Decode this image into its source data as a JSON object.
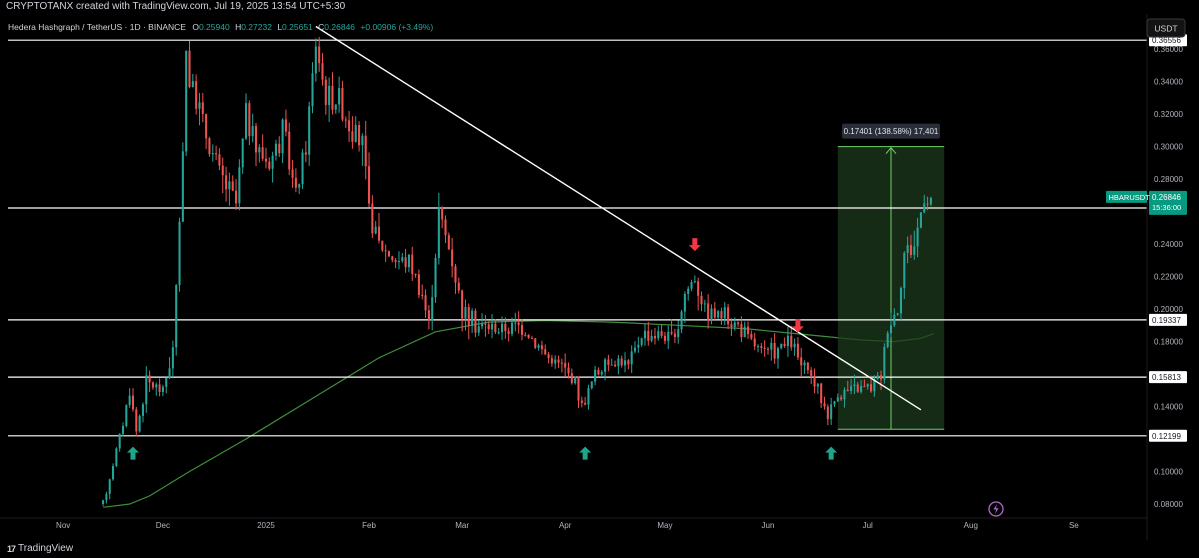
{
  "header": {
    "author_line": "CRYPTOTANX created with TradingView.com, Jul 19, 2025 13:54 UTC+5:30"
  },
  "legend": {
    "symbol": "Hedera Hashgraph / TetherUS · 1D · BINANCE",
    "o_label": "O",
    "o": "0.25940",
    "h_label": "H",
    "h": "0.27232",
    "l_label": "L",
    "l": "0.25651",
    "c_label": "C",
    "c": "0.26846",
    "change": "+0.00906 (+3.49%)"
  },
  "currency_button": "USDT",
  "footer": {
    "brand": "TradingView"
  },
  "colors": {
    "background": "#000000",
    "up": "#26a69a",
    "down": "#ef5350",
    "ma_line": "#3f8f3a",
    "level_line": "#ffffff",
    "projection_fill": "#1e3a1e",
    "projection_line": "#6fd26a",
    "arrow_up": "#1fa58a",
    "arrow_down": "#f23645",
    "price_tag": "#089981"
  },
  "chart_data": {
    "type": "candlestick",
    "symbol": "HBARUSDT",
    "xaxis_ticks": [
      "Nov",
      "Dec",
      "2025",
      "Feb",
      "Mar",
      "Apr",
      "May",
      "Jun",
      "Jul",
      "Aug",
      "Se"
    ],
    "yaxis_ticks": [
      "0.36000",
      "0.34000",
      "0.32000",
      "0.30000",
      "0.28000",
      "0.24000",
      "0.22000",
      "0.20000",
      "0.18000",
      "0.14000",
      "0.10000",
      "0.08000"
    ],
    "ylim": [
      0.072,
      0.378
    ],
    "x_range_days": [
      -19,
      326
    ],
    "x_tick_days": [
      0,
      30,
      61,
      92,
      120,
      151,
      181,
      212,
      242,
      273,
      304
    ],
    "horizontal_levels": [
      {
        "label": "0.36556",
        "value": 0.36556
      },
      {
        "label": "0.26224",
        "value": 0.26224
      },
      {
        "label": "0.19337",
        "value": 0.19337
      },
      {
        "label": "0.15813",
        "value": 0.15813
      },
      {
        "label": "0.12199",
        "value": 0.12199
      }
    ],
    "current_price": {
      "symbol": "HBARUSDT",
      "price": "0.26846",
      "countdown": "15:36:00",
      "value": 0.26846
    },
    "trendline": {
      "start": {
        "day": 76,
        "value": 0.374
      },
      "end": {
        "day": 258,
        "value": 0.138
      }
    },
    "projection": {
      "label": "0.17401 (138.58%) 17,401",
      "day_start": 233,
      "day_end": 265,
      "low": 0.126,
      "high": 0.3,
      "arrow_day": 249
    },
    "markers": [
      {
        "type": "up",
        "day": 21,
        "value": 0.111
      },
      {
        "type": "up",
        "day": 157,
        "value": 0.111
      },
      {
        "type": "down",
        "day": 190,
        "value": 0.24
      },
      {
        "type": "down",
        "day": 221,
        "value": 0.19
      },
      {
        "type": "up",
        "day": 231,
        "value": 0.111
      }
    ],
    "anchors": [
      [
        -19,
        0.08
      ],
      [
        12,
        0.08
      ],
      [
        18,
        0.13
      ],
      [
        20,
        0.15
      ],
      [
        22,
        0.125
      ],
      [
        25,
        0.155
      ],
      [
        30,
        0.15
      ],
      [
        33,
        0.175
      ],
      [
        35,
        0.25
      ],
      [
        37,
        0.36
      ],
      [
        38,
        0.34
      ],
      [
        40,
        0.33
      ],
      [
        44,
        0.3
      ],
      [
        48,
        0.28
      ],
      [
        52,
        0.265
      ],
      [
        55,
        0.32
      ],
      [
        58,
        0.3
      ],
      [
        62,
        0.29
      ],
      [
        66,
        0.31
      ],
      [
        70,
        0.27
      ],
      [
        73,
        0.3
      ],
      [
        76,
        0.365
      ],
      [
        79,
        0.33
      ],
      [
        83,
        0.33
      ],
      [
        87,
        0.31
      ],
      [
        90,
        0.3
      ],
      [
        92,
        0.26
      ],
      [
        95,
        0.24
      ],
      [
        100,
        0.23
      ],
      [
        104,
        0.23
      ],
      [
        108,
        0.21
      ],
      [
        110,
        0.19
      ],
      [
        113,
        0.26
      ],
      [
        117,
        0.23
      ],
      [
        120,
        0.2
      ],
      [
        124,
        0.19
      ],
      [
        132,
        0.188
      ],
      [
        138,
        0.19
      ],
      [
        142,
        0.18
      ],
      [
        146,
        0.17
      ],
      [
        150,
        0.165
      ],
      [
        154,
        0.155
      ],
      [
        156,
        0.14
      ],
      [
        160,
        0.16
      ],
      [
        166,
        0.17
      ],
      [
        170,
        0.165
      ],
      [
        174,
        0.185
      ],
      [
        180,
        0.185
      ],
      [
        184,
        0.18
      ],
      [
        187,
        0.21
      ],
      [
        190,
        0.22
      ],
      [
        193,
        0.2
      ],
      [
        199,
        0.195
      ],
      [
        203,
        0.19
      ],
      [
        207,
        0.18
      ],
      [
        211,
        0.172
      ],
      [
        215,
        0.175
      ],
      [
        219,
        0.18
      ],
      [
        222,
        0.165
      ],
      [
        226,
        0.155
      ],
      [
        230,
        0.135
      ],
      [
        233,
        0.148
      ],
      [
        237,
        0.15
      ],
      [
        243,
        0.152
      ],
      [
        246,
        0.16
      ],
      [
        248,
        0.19
      ],
      [
        251,
        0.2
      ],
      [
        253,
        0.235
      ],
      [
        256,
        0.24
      ],
      [
        259,
        0.27
      ],
      [
        261,
        0.265
      ]
    ],
    "ma200": [
      [
        12,
        0.078
      ],
      [
        20,
        0.08
      ],
      [
        26,
        0.085
      ],
      [
        38,
        0.1
      ],
      [
        55,
        0.12
      ],
      [
        75,
        0.145
      ],
      [
        95,
        0.17
      ],
      [
        112,
        0.186
      ],
      [
        128,
        0.192
      ],
      [
        145,
        0.193
      ],
      [
        165,
        0.192
      ],
      [
        185,
        0.19
      ],
      [
        205,
        0.188
      ],
      [
        225,
        0.184
      ],
      [
        240,
        0.181
      ],
      [
        250,
        0.18
      ],
      [
        258,
        0.182
      ],
      [
        262,
        0.185
      ]
    ]
  }
}
